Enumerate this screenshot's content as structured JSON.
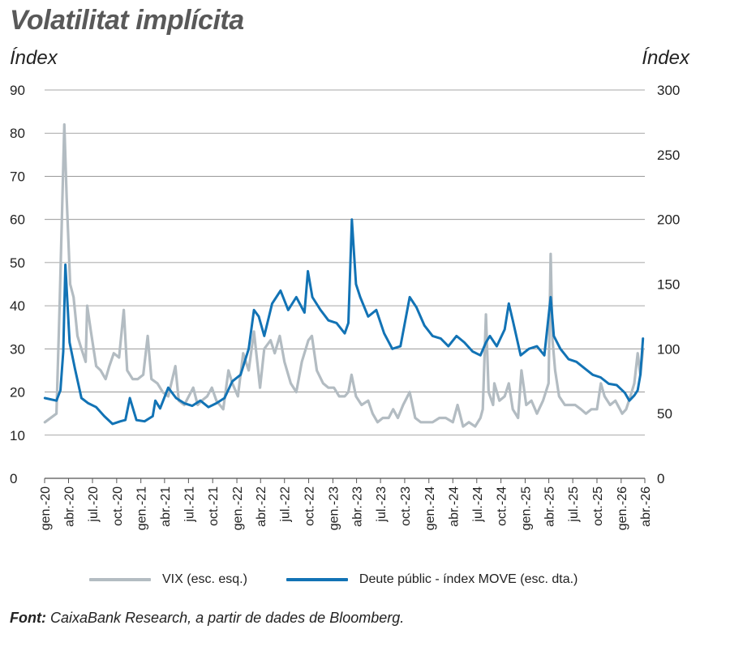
{
  "chart_data": {
    "type": "line",
    "title": "Volatilitat implícita",
    "ylabel_left": "Índex",
    "ylabel_right": "Índex",
    "left_axis": {
      "min": 0,
      "max": 90,
      "ticks": [
        0,
        10,
        20,
        30,
        40,
        50,
        60,
        70,
        80,
        90
      ]
    },
    "right_axis": {
      "min": 0,
      "max": 300,
      "ticks": [
        0,
        50,
        100,
        150,
        200,
        250,
        300
      ]
    },
    "x_ticks": [
      "gen.-20",
      "abr.-20",
      "jul.-20",
      "oct.-20",
      "gen.-21",
      "abr.-21",
      "jul.-21",
      "oct.-21",
      "gen.-22",
      "abr.-22",
      "jul.-22",
      "oct.-22",
      "gen.-23",
      "abr.-23",
      "jul.-23",
      "oct.-23",
      "gen.-24",
      "abr.-24",
      "jul.-24",
      "oct.-24",
      "gen.-25",
      "abr.-25",
      "jul.-25",
      "oct.-25",
      "gen.-26",
      "abr.-26"
    ],
    "grid": true,
    "legend_position": "bottom",
    "series": [
      {
        "name": "VIX (esc. esq.)",
        "axis": "left",
        "color": "#b3bcc2",
        "x": [
          "2020-01-02",
          "2020-02-15",
          "2020-02-27",
          "2020-03-16",
          "2020-03-25",
          "2020-04-07",
          "2020-04-20",
          "2020-05-05",
          "2020-05-20",
          "2020-06-05",
          "2020-06-11",
          "2020-06-25",
          "2020-07-15",
          "2020-08-01",
          "2020-08-20",
          "2020-09-03",
          "2020-09-20",
          "2020-10-10",
          "2020-10-28",
          "2020-11-10",
          "2020-12-01",
          "2020-12-20",
          "2021-01-10",
          "2021-01-27",
          "2021-02-10",
          "2021-03-05",
          "2021-03-25",
          "2021-04-15",
          "2021-05-12",
          "2021-05-25",
          "2021-06-15",
          "2021-07-19",
          "2021-08-05",
          "2021-08-20",
          "2021-09-10",
          "2021-09-28",
          "2021-10-15",
          "2021-11-10",
          "2021-11-30",
          "2021-12-15",
          "2022-01-05",
          "2022-01-25",
          "2022-02-15",
          "2022-03-07",
          "2022-03-30",
          "2022-04-15",
          "2022-05-09",
          "2022-05-25",
          "2022-06-13",
          "2022-07-01",
          "2022-07-25",
          "2022-08-15",
          "2022-09-05",
          "2022-09-30",
          "2022-10-13",
          "2022-11-01",
          "2022-11-25",
          "2022-12-15",
          "2023-01-05",
          "2023-01-25",
          "2023-02-15",
          "2023-03-01",
          "2023-03-13",
          "2023-03-30",
          "2023-04-20",
          "2023-05-15",
          "2023-06-01",
          "2023-06-20",
          "2023-07-10",
          "2023-08-01",
          "2023-08-18",
          "2023-09-05",
          "2023-09-25",
          "2023-10-20",
          "2023-11-10",
          "2023-12-01",
          "2023-12-20",
          "2024-01-15",
          "2024-02-10",
          "2024-03-05",
          "2024-04-01",
          "2024-04-19",
          "2024-05-10",
          "2024-06-01",
          "2024-06-25",
          "2024-07-15",
          "2024-07-24",
          "2024-08-05",
          "2024-08-15",
          "2024-09-01",
          "2024-09-06",
          "2024-09-25",
          "2024-10-15",
          "2024-10-31",
          "2024-11-15",
          "2024-12-05",
          "2024-12-18",
          "2025-01-05",
          "2025-01-25",
          "2025-02-15",
          "2025-03-10",
          "2025-03-31",
          "2025-04-08",
          "2025-04-15",
          "2025-04-25",
          "2025-05-10",
          "2025-06-01",
          "2025-06-20",
          "2025-07-10",
          "2025-08-01",
          "2025-08-20",
          "2025-09-10",
          "2025-10-01",
          "2025-10-16",
          "2025-10-30",
          "2025-11-20",
          "2025-12-10",
          "2026-01-05",
          "2026-01-20",
          "2026-02-05",
          "2026-02-20",
          "2026-03-05",
          "2026-03-15",
          "2026-03-25"
        ],
        "y": [
          13,
          15,
          40,
          82,
          65,
          45,
          42,
          33,
          30,
          27,
          40,
          34,
          26,
          25,
          23,
          26,
          29,
          28,
          39,
          25,
          23,
          23,
          24,
          33,
          23,
          22,
          20,
          19,
          26,
          18,
          17,
          21,
          17,
          18,
          19,
          21,
          18,
          16,
          25,
          22,
          19,
          29,
          25,
          34,
          21,
          30,
          32,
          29,
          33,
          27,
          22,
          20,
          27,
          32,
          33,
          25,
          22,
          21,
          21,
          19,
          19,
          20,
          24,
          19,
          17,
          18,
          15,
          13,
          14,
          14,
          16,
          14,
          17,
          20,
          14,
          13,
          13,
          13,
          14,
          14,
          13,
          17,
          12,
          13,
          12,
          14,
          16,
          38,
          20,
          17,
          22,
          18,
          19,
          22,
          16,
          14,
          25,
          17,
          18,
          15,
          18,
          22,
          52,
          32,
          25,
          19,
          17,
          17,
          17,
          16,
          15,
          16,
          16,
          22,
          19,
          17,
          18,
          15,
          16,
          19,
          22,
          29,
          24,
          30
        ]
      },
      {
        "name": "Deute públic - índex MOVE (esc. dta.)",
        "axis": "right",
        "color": "#1273b5",
        "x": [
          "2020-01-02",
          "2020-02-15",
          "2020-03-01",
          "2020-03-12",
          "2020-03-20",
          "2020-04-05",
          "2020-04-25",
          "2020-05-20",
          "2020-06-15",
          "2020-07-15",
          "2020-08-15",
          "2020-09-15",
          "2020-10-15",
          "2020-11-03",
          "2020-11-20",
          "2020-12-15",
          "2021-01-15",
          "2021-02-15",
          "2021-02-25",
          "2021-03-15",
          "2021-04-15",
          "2021-05-15",
          "2021-06-15",
          "2021-07-15",
          "2021-08-15",
          "2021-09-15",
          "2021-10-15",
          "2021-11-15",
          "2021-12-15",
          "2022-01-15",
          "2022-02-15",
          "2022-03-07",
          "2022-03-25",
          "2022-04-15",
          "2022-05-15",
          "2022-06-16",
          "2022-07-15",
          "2022-08-15",
          "2022-09-15",
          "2022-09-28",
          "2022-10-15",
          "2022-11-15",
          "2022-12-15",
          "2023-01-15",
          "2023-02-15",
          "2023-03-01",
          "2023-03-14",
          "2023-03-30",
          "2023-04-15",
          "2023-05-15",
          "2023-06-15",
          "2023-07-15",
          "2023-08-15",
          "2023-09-15",
          "2023-10-20",
          "2023-11-15",
          "2023-12-15",
          "2024-01-15",
          "2024-02-15",
          "2024-03-15",
          "2024-04-15",
          "2024-05-15",
          "2024-06-15",
          "2024-07-15",
          "2024-08-05",
          "2024-08-20",
          "2024-09-15",
          "2024-10-15",
          "2024-10-31",
          "2024-11-15",
          "2024-12-15",
          "2025-01-15",
          "2025-02-15",
          "2025-03-15",
          "2025-04-08",
          "2025-04-20",
          "2025-05-15",
          "2025-06-15",
          "2025-07-15",
          "2025-08-15",
          "2025-09-15",
          "2025-10-15",
          "2025-11-15",
          "2025-12-15",
          "2026-01-15",
          "2026-02-01",
          "2026-02-20",
          "2026-03-05",
          "2026-03-15",
          "2026-03-25"
        ],
        "y": [
          62,
          60,
          68,
          98,
          165,
          105,
          85,
          62,
          58,
          55,
          48,
          42,
          44,
          45,
          62,
          45,
          44,
          48,
          60,
          54,
          70,
          62,
          58,
          56,
          60,
          55,
          58,
          62,
          75,
          80,
          100,
          130,
          125,
          110,
          135,
          145,
          130,
          140,
          128,
          160,
          140,
          130,
          122,
          120,
          112,
          120,
          200,
          150,
          140,
          125,
          130,
          112,
          100,
          102,
          140,
          132,
          118,
          110,
          108,
          102,
          110,
          105,
          98,
          95,
          105,
          110,
          102,
          115,
          135,
          122,
          95,
          100,
          102,
          95,
          140,
          110,
          100,
          92,
          90,
          85,
          80,
          78,
          73,
          72,
          66,
          60,
          64,
          68,
          80,
          108
        ]
      }
    ]
  },
  "legend": {
    "vix_label": "VIX (esc. esq.)",
    "move_label": "Deute públic - índex MOVE (esc. dta.)"
  },
  "source": {
    "label": "Font:",
    "text": "CaixaBank Research, a partir de dades de Bloomberg."
  }
}
